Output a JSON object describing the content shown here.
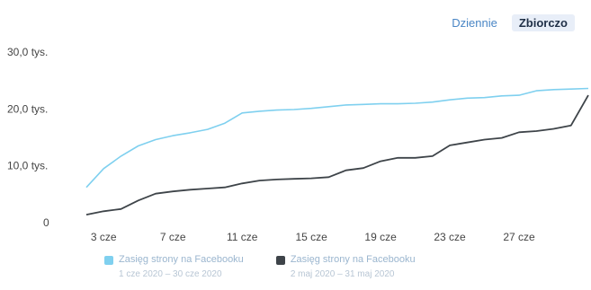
{
  "toggle": {
    "daily_label": "Dziennie",
    "cumulative_label": "Zbiorczo"
  },
  "colors": {
    "series_current": "#7fd0ef",
    "series_previous": "#3e4449",
    "axis_text": "#444444",
    "grid": "#e6e6e6"
  },
  "chart_data": {
    "type": "line",
    "xlabel": "",
    "ylabel": "",
    "ylim": [
      0,
      30000
    ],
    "y_ticks": [
      {
        "value": 0,
        "label": "0"
      },
      {
        "value": 10000,
        "label": "10,0 tys."
      },
      {
        "value": 20000,
        "label": "20,0 tys."
      },
      {
        "value": 30000,
        "label": "30,0 tys."
      }
    ],
    "x_ticks": [
      {
        "index": 1,
        "label": "3 cze"
      },
      {
        "index": 5,
        "label": "7 cze"
      },
      {
        "index": 9,
        "label": "11 cze"
      },
      {
        "index": 13,
        "label": "15 cze"
      },
      {
        "index": 17,
        "label": "19 cze"
      },
      {
        "index": 21,
        "label": "23 cze"
      },
      {
        "index": 25,
        "label": "27 cze"
      }
    ],
    "x_count": 30,
    "grid": false,
    "series": [
      {
        "name": "Zasięg strony na Facebooku",
        "color_key": "series_current",
        "values": [
          6200,
          9500,
          11700,
          13500,
          14600,
          15300,
          15800,
          16400,
          17500,
          19300,
          19600,
          19800,
          19900,
          20100,
          20400,
          20700,
          20800,
          20900,
          20900,
          21000,
          21200,
          21600,
          21900,
          22000,
          22300,
          22400,
          23200,
          23400,
          23500,
          23600
        ]
      },
      {
        "name": "Zasięg strony na Facebooku",
        "color_key": "series_previous",
        "values": [
          1400,
          2000,
          2400,
          3900,
          5100,
          5500,
          5800,
          6000,
          6200,
          6900,
          7400,
          7600,
          7700,
          7800,
          8000,
          9200,
          9600,
          10800,
          11400,
          11400,
          11700,
          13600,
          14100,
          14600,
          14900,
          15900,
          16100,
          16500,
          17100,
          22400
        ]
      }
    ]
  },
  "legend": [
    {
      "label": "Zasięg strony na Facebooku",
      "sublabel": "1 cze 2020 – 30 cze 2020"
    },
    {
      "label": "Zasięg strony na Facebooku",
      "sublabel": "2 maj 2020 – 31 maj 2020"
    }
  ]
}
